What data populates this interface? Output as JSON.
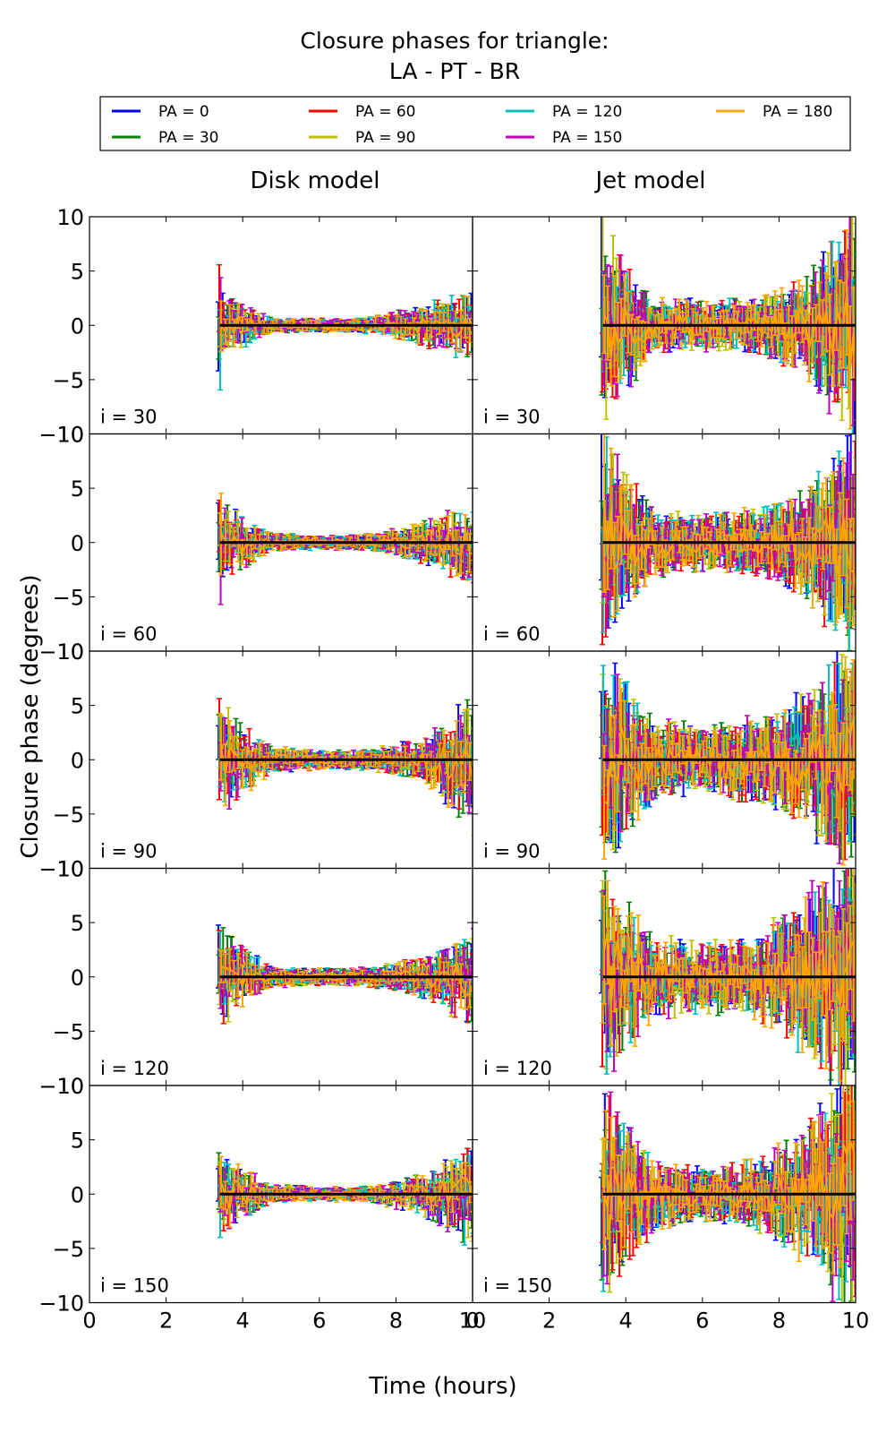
{
  "figure": {
    "title_line1": "Closure phases for triangle:",
    "title_line2": "LA - PT - BR",
    "xlabel": "Time (hours)",
    "ylabel": "Closure phase (degrees)"
  },
  "legend": [
    {
      "label": "PA = 0",
      "color": "#0000ff"
    },
    {
      "label": "PA = 30",
      "color": "#008000"
    },
    {
      "label": "PA = 60",
      "color": "#ff0000"
    },
    {
      "label": "PA = 90",
      "color": "#bfbf00"
    },
    {
      "label": "PA = 120",
      "color": "#00bfbf"
    },
    {
      "label": "PA = 150",
      "color": "#bf00bf"
    },
    {
      "label": "PA = 180",
      "color": "#ffa500"
    }
  ],
  "columns": [
    "Disk model",
    "Jet model"
  ],
  "rows": [
    "i = 30",
    "i = 60",
    "i = 90",
    "i = 120",
    "i = 150"
  ],
  "chart_data": {
    "type": "line",
    "x_range_hours": [
      3.4,
      10.0
    ],
    "xlim": [
      0,
      10
    ],
    "ylim": [
      -10,
      10
    ],
    "xticks": [
      "0",
      "2",
      "4",
      "6",
      "8",
      "10"
    ],
    "yticks": [
      "10",
      "5",
      "0",
      "−5",
      "−10"
    ],
    "reference_line": 0,
    "series_names": [
      "PA = 0",
      "PA = 30",
      "PA = 60",
      "PA = 90",
      "PA = 120",
      "PA = 150",
      "PA = 180"
    ],
    "panels": [
      {
        "model": "Disk model",
        "inclination": "i = 30",
        "envelope_abs_deg": [
          2.5,
          0.6,
          0.5,
          0.6,
          1.5,
          2.5
        ],
        "startup_spike_deg": 6
      },
      {
        "model": "Jet model",
        "inclination": "i = 30",
        "envelope_abs_deg": [
          7,
          2,
          1.8,
          2,
          3.5,
          9
        ],
        "startup_spike_deg": 10
      },
      {
        "model": "Disk model",
        "inclination": "i = 60",
        "envelope_abs_deg": [
          3,
          0.7,
          0.5,
          0.6,
          1.5,
          3
        ],
        "startup_spike_deg": 5
      },
      {
        "model": "Jet model",
        "inclination": "i = 60",
        "envelope_abs_deg": [
          8,
          2.5,
          2,
          2.5,
          4,
          9
        ],
        "startup_spike_deg": 10
      },
      {
        "model": "Disk model",
        "inclination": "i = 90",
        "envelope_abs_deg": [
          4,
          1,
          0.7,
          0.8,
          1.5,
          5
        ],
        "startup_spike_deg": 7
      },
      {
        "model": "Jet model",
        "inclination": "i = 90",
        "envelope_abs_deg": [
          8,
          3,
          2.5,
          3,
          5,
          9
        ],
        "startup_spike_deg": 10
      },
      {
        "model": "Disk model",
        "inclination": "i = 120",
        "envelope_abs_deg": [
          3.5,
          0.8,
          0.6,
          0.7,
          1.6,
          3.5
        ],
        "startup_spike_deg": 4.5
      },
      {
        "model": "Jet model",
        "inclination": "i = 120",
        "envelope_abs_deg": [
          8,
          3,
          2.5,
          3,
          6,
          10
        ],
        "startup_spike_deg": 10
      },
      {
        "model": "Disk model",
        "inclination": "i = 150",
        "envelope_abs_deg": [
          3,
          0.7,
          0.5,
          0.6,
          1.5,
          4
        ],
        "startup_spike_deg": 4.5
      },
      {
        "model": "Jet model",
        "inclination": "i = 150",
        "envelope_abs_deg": [
          8,
          2.5,
          2,
          2.5,
          5,
          10
        ],
        "startup_spike_deg": 10
      }
    ]
  }
}
